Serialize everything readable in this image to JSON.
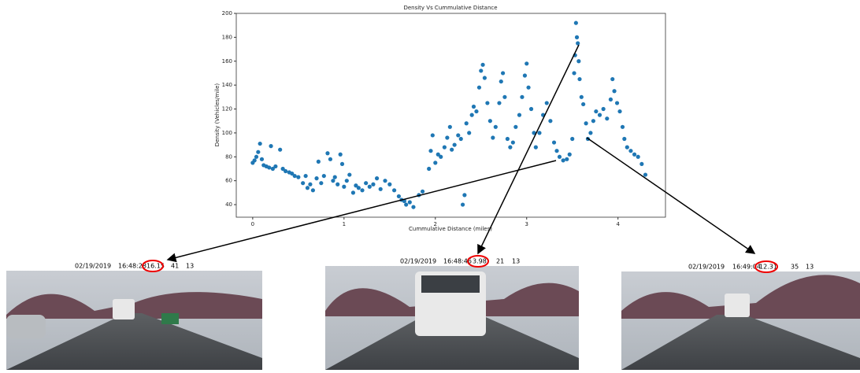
{
  "chart_data": {
    "type": "scatter",
    "title": "Density Vs Cummulative Distance",
    "xlabel": "Cummulative Distance (miles)",
    "ylabel": "Density (Vehicles/mile)",
    "color": "#1f77b4",
    "xlim": [
      -0.18,
      4.52
    ],
    "ylim": [
      29.5,
      200
    ],
    "xticks": [
      0,
      1,
      2,
      3,
      4
    ],
    "yticks": [
      40,
      60,
      80,
      100,
      120,
      140,
      160,
      180,
      200
    ],
    "x": [
      0.0,
      0.02,
      0.04,
      0.06,
      0.08,
      0.1,
      0.12,
      0.15,
      0.18,
      0.2,
      0.22,
      0.25,
      0.3,
      0.33,
      0.36,
      0.4,
      0.43,
      0.46,
      0.5,
      0.55,
      0.58,
      0.6,
      0.63,
      0.66,
      0.7,
      0.72,
      0.75,
      0.78,
      0.82,
      0.85,
      0.88,
      0.9,
      0.93,
      0.96,
      0.98,
      1.0,
      1.03,
      1.06,
      1.1,
      1.13,
      1.16,
      1.2,
      1.24,
      1.28,
      1.32,
      1.36,
      1.4,
      1.45,
      1.5,
      1.55,
      1.6,
      1.63,
      1.66,
      1.68,
      1.72,
      1.76,
      1.82,
      1.86,
      1.93,
      1.95,
      1.97,
      2.0,
      2.03,
      2.06,
      2.1,
      2.13,
      2.16,
      2.18,
      2.21,
      2.25,
      2.28,
      2.3,
      2.32,
      2.34,
      2.37,
      2.4,
      2.42,
      2.45,
      2.48,
      2.5,
      2.52,
      2.54,
      2.57,
      2.6,
      2.63,
      2.66,
      2.7,
      2.72,
      2.74,
      2.76,
      2.79,
      2.82,
      2.85,
      2.88,
      2.92,
      2.95,
      2.98,
      3.0,
      3.02,
      3.05,
      3.08,
      3.1,
      3.14,
      3.18,
      3.22,
      3.26,
      3.3,
      3.33,
      3.36,
      3.4,
      3.44,
      3.47,
      3.5,
      3.52,
      3.53,
      3.54,
      3.55,
      3.56,
      3.57,
      3.58,
      3.6,
      3.62,
      3.65,
      3.67,
      3.7,
      3.73,
      3.76,
      3.8,
      3.84,
      3.88,
      3.92,
      3.94,
      3.96,
      3.99,
      4.02,
      4.05,
      4.07,
      4.1,
      4.14,
      4.18,
      4.22,
      4.26,
      4.3
    ],
    "values": [
      75,
      77,
      80,
      84,
      91,
      78,
      73,
      72,
      71,
      89,
      70,
      72,
      86,
      70,
      68,
      67,
      66,
      64,
      63,
      58,
      64,
      54,
      57,
      52,
      62,
      76,
      58,
      64,
      83,
      78,
      60,
      63,
      57,
      82,
      74,
      55,
      60,
      65,
      50,
      56,
      54,
      52,
      58,
      55,
      57,
      62,
      53,
      60,
      57,
      52,
      47,
      44,
      43,
      40,
      42,
      38,
      48,
      51,
      70,
      85,
      98,
      75,
      82,
      80,
      88,
      96,
      105,
      86,
      90,
      98,
      95,
      40,
      48,
      108,
      100,
      115,
      122,
      118,
      138,
      152,
      157,
      146,
      125,
      110,
      96,
      105,
      125,
      143,
      150,
      130,
      95,
      88,
      92,
      105,
      115,
      130,
      148,
      158,
      138,
      120,
      100,
      88,
      100,
      115,
      125,
      110,
      92,
      85,
      80,
      77,
      78,
      82,
      95,
      150,
      165,
      192,
      180,
      175,
      160,
      145,
      130,
      124,
      108,
      95,
      100,
      110,
      118,
      115,
      120,
      112,
      128,
      145,
      135,
      125,
      118,
      105,
      95,
      88,
      85,
      82,
      80,
      74,
      65
    ]
  },
  "frames": [
    {
      "date": "02/19/2019",
      "time": "16:48:28",
      "distance": "16.15",
      "speed": "41",
      "lane": "13"
    },
    {
      "date": "02/19/2019",
      "time": "16:48:46",
      "distance": "3.98",
      "speed": "21",
      "lane": "13"
    },
    {
      "date": "02/19/2019",
      "time": "16:49:04",
      "distance": "12.31",
      "speed": "35",
      "lane": "13"
    }
  ]
}
